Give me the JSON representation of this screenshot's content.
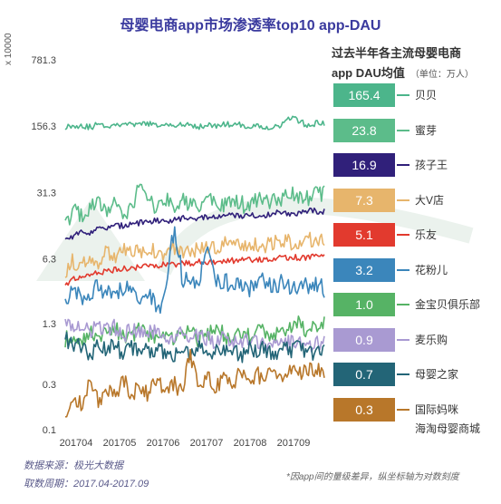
{
  "title": "母婴电商app市场渗透率top10 app-DAU",
  "legend_title_line1": "过去半年各主流母婴电商",
  "legend_title_line2": "app DAU均值",
  "legend_unit": "（单位：万人）",
  "footer": {
    "source": "数据来源：极光大数据",
    "period": "取数周期：2017.04-2017.09",
    "note": "*因app间的量级差异，纵坐标轴为对数刻度"
  },
  "chart_data": {
    "type": "line",
    "title": "母婴电商app市场渗透率top10 app-DAU",
    "ylabel": "x 10000",
    "yscale": "log",
    "ylim": [
      0.1,
      781.3
    ],
    "yticks": [
      0.1,
      0.3,
      1.3,
      6.3,
      31.3,
      156.3,
      781.3
    ],
    "ytick_labels": [
      "0.1",
      "0.3",
      "1.3",
      "6.3",
      "31.3",
      "156.3",
      "781.3"
    ],
    "xticks": [
      "201704",
      "201705",
      "201706",
      "201707",
      "201708",
      "201709"
    ],
    "x_range": [
      "2017-04-01",
      "2017-09-30"
    ],
    "legend_placement": "right",
    "series": [
      {
        "name": "贝贝",
        "avg": "165.4",
        "color": "#4cb58b",
        "values": [
          155,
          158,
          160,
          152,
          165,
          157,
          162,
          170,
          158,
          163,
          168,
          155,
          160,
          165,
          158,
          162,
          155,
          160,
          158,
          165,
          160,
          162,
          155,
          158,
          150,
          155,
          162,
          195,
          175,
          160,
          168,
          165
        ]
      },
      {
        "name": "蜜芽",
        "avg": "23.8",
        "color": "#5cbc8a",
        "values": [
          14,
          20,
          17,
          22,
          24,
          19,
          26,
          18,
          22,
          40,
          25,
          20,
          28,
          22,
          26,
          24,
          20,
          28,
          24,
          22,
          26,
          24,
          22,
          26,
          24,
          28,
          26,
          30,
          26,
          28,
          30,
          31
        ]
      },
      {
        "name": "孩子王",
        "avg": "16.9",
        "color": "#30207a",
        "values": [
          10,
          11,
          12,
          12,
          13,
          13,
          14,
          14,
          15,
          15,
          15,
          16,
          16,
          16,
          17,
          17,
          17,
          17,
          17,
          18,
          18,
          18,
          18,
          18,
          18,
          19,
          19,
          19,
          19,
          20,
          20,
          20
        ]
      },
      {
        "name": "大V店",
        "avg": "7.3",
        "color": "#e7b56c",
        "values": [
          4.5,
          6.0,
          5.2,
          6.8,
          6.0,
          7.2,
          6.2,
          7.5,
          6.8,
          7.8,
          7.0,
          8.0,
          7.2,
          8.2,
          7.5,
          8.0,
          7.8,
          8.5,
          8.0,
          8.8,
          8.2,
          9.0,
          8.5,
          9.2,
          8.8,
          9.0,
          9.2,
          9.5,
          9.8,
          10.0,
          10.2,
          10.5
        ]
      },
      {
        "name": "乐友",
        "avg": "5.1",
        "color": "#e23a2e",
        "values": [
          3.2,
          3.8,
          4.0,
          4.2,
          4.5,
          4.6,
          4.8,
          5.0,
          5.0,
          5.2,
          5.2,
          5.4,
          5.5,
          5.5,
          5.6,
          5.6,
          5.8,
          5.8,
          5.9,
          6.0,
          6.0,
          6.1,
          6.2,
          6.2,
          6.3,
          6.3,
          6.4,
          6.5,
          6.5,
          6.5,
          6.6,
          6.6
        ]
      },
      {
        "name": "花粉儿",
        "avg": "3.2",
        "color": "#3b86bb",
        "values": [
          2.2,
          3.0,
          2.5,
          2.8,
          3.2,
          2.6,
          3.0,
          2.8,
          3.4,
          2.2,
          3.0,
          1.6,
          2.6,
          12.0,
          3.8,
          4.0,
          3.6,
          8.0,
          3.4,
          3.8,
          3.2,
          3.6,
          3.0,
          3.4,
          3.8,
          3.2,
          3.6,
          3.0,
          3.4,
          3.2,
          3.5,
          3.0
        ]
      },
      {
        "name": "金宝贝俱乐部",
        "avg": "1.0",
        "color": "#56b365",
        "values": [
          0.9,
          1.0,
          0.9,
          1.1,
          0.9,
          1.0,
          1.2,
          0.9,
          1.0,
          1.1,
          0.9,
          1.0,
          1.0,
          0.9,
          1.1,
          1.0,
          0.9,
          1.0,
          1.1,
          1.0,
          0.9,
          1.0,
          1.0,
          1.1,
          1.0,
          1.0,
          1.2,
          1.1,
          1.3,
          1.1,
          1.2,
          1.4
        ]
      },
      {
        "name": "麦乐购",
        "avg": "0.9",
        "color": "#a99ad2",
        "values": [
          1.3,
          1.2,
          1.3,
          1.1,
          1.2,
          1.1,
          1.2,
          1.0,
          1.1,
          1.0,
          1.1,
          1.0,
          1.0,
          0.9,
          1.0,
          0.9,
          0.95,
          0.9,
          0.85,
          0.9,
          0.85,
          0.9,
          0.8,
          0.85,
          0.8,
          0.85,
          0.8,
          0.85,
          0.8,
          0.8,
          0.8,
          0.8
        ]
      },
      {
        "name": "母婴之家",
        "avg": "0.7",
        "color": "#236577",
        "values": [
          0.9,
          0.7,
          0.8,
          0.6,
          0.75,
          0.65,
          0.8,
          0.6,
          0.75,
          0.6,
          0.7,
          0.65,
          0.7,
          0.6,
          0.75,
          0.65,
          0.7,
          0.6,
          0.7,
          0.65,
          0.7,
          0.6,
          0.7,
          0.65,
          0.72,
          0.62,
          0.7,
          0.66,
          0.72,
          0.6,
          0.7,
          0.65
        ]
      },
      {
        "name": "国际妈咪海淘母婴商城",
        "avg": "0.3",
        "color": "#b8772a",
        "values": [
          0.15,
          0.22,
          0.18,
          0.3,
          0.2,
          0.28,
          0.22,
          0.32,
          0.24,
          0.3,
          0.22,
          0.35,
          0.26,
          0.3,
          0.24,
          0.6,
          0.3,
          0.36,
          0.28,
          0.34,
          0.3,
          0.4,
          0.32,
          0.38,
          0.34,
          0.4,
          0.36,
          0.42,
          0.38,
          0.45,
          0.4,
          0.42
        ]
      }
    ]
  }
}
